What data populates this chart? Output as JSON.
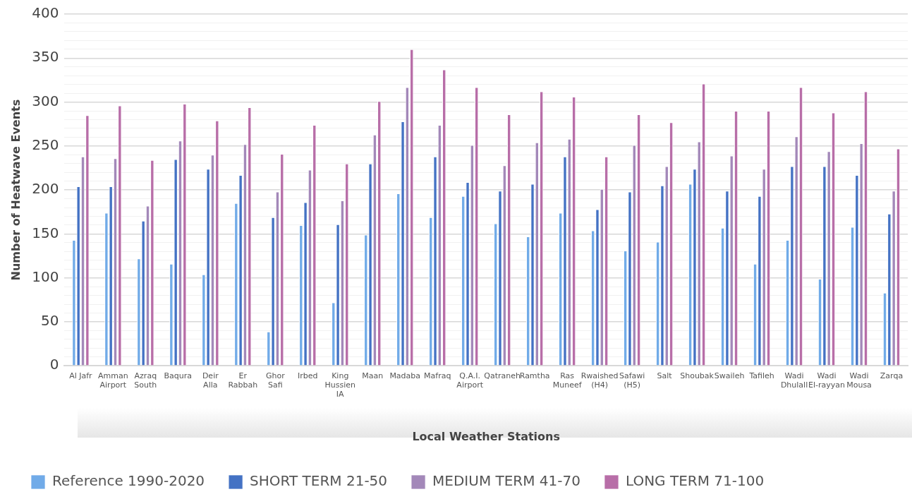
{
  "chart_data": {
    "type": "bar",
    "xlabel": "Local Weather Stations",
    "ylabel": "Number of Heatwave Events",
    "categories": [
      "Al Jafr",
      "Amman Airport",
      "Azraq South",
      "Baqura",
      "Deir Alla",
      "Er Rabbah",
      "Ghor Safi",
      "Irbed",
      "King Hussien IA",
      "Maan",
      "Madaba",
      "Mafraq",
      "Q.A.I. Airport",
      "Qatraneh",
      "Ramtha",
      "Ras Muneef",
      "Rwaished (H4)",
      "Safawi (H5)",
      "Salt",
      "Shoubak",
      "Swaileh",
      "Tafileh",
      "Wadi Dhulall",
      "Wadi El-rayyan",
      "Wadi Mousa",
      "Zarqa"
    ],
    "series": [
      {
        "name": "Reference 1990-2020",
        "color": "#71abe8",
        "values": [
          143,
          174,
          122,
          116,
          104,
          185,
          39,
          160,
          72,
          149,
          196,
          169,
          193,
          162,
          147,
          174,
          154,
          131,
          141,
          207,
          157,
          116,
          143,
          99,
          158,
          83
        ]
      },
      {
        "name": "SHORT TERM 21-50",
        "color": "#4472c4",
        "values": [
          204,
          204,
          165,
          235,
          224,
          217,
          169,
          186,
          161,
          230,
          278,
          238,
          209,
          199,
          207,
          238,
          178,
          198,
          205,
          224,
          199,
          193,
          227,
          227,
          217,
          173
        ]
      },
      {
        "name": "MEDIUM TERM 41-70",
        "color": "#a388b9",
        "values": [
          238,
          236,
          182,
          256,
          240,
          252,
          198,
          223,
          188,
          263,
          317,
          274,
          251,
          228,
          254,
          258,
          201,
          251,
          227,
          255,
          239,
          224,
          261,
          244,
          253,
          199
        ]
      },
      {
        "name": "LONG TERM 71-100",
        "color": "#b86ea8",
        "values": [
          285,
          296,
          234,
          298,
          279,
          294,
          241,
          274,
          230,
          301,
          360,
          337,
          317,
          286,
          312,
          306,
          238,
          286,
          277,
          321,
          290,
          290,
          317,
          288,
          312,
          247
        ]
      }
    ],
    "ylim": [
      0,
      400
    ],
    "yticks": [
      0,
      {
        "value": 10,
        "label": null
      },
      {
        "value": 20,
        "label": null
      },
      {
        "value": 30,
        "label": null
      },
      {
        "value": 40,
        "label": null
      },
      50,
      {
        "value": 60,
        "label": null
      },
      {
        "value": 70,
        "label": null
      },
      {
        "value": 80,
        "label": null
      },
      {
        "value": 90,
        "label": null
      },
      100,
      {
        "value": 110,
        "label": null
      },
      {
        "value": 120,
        "label": null
      },
      {
        "value": 130,
        "label": null
      },
      {
        "value": 140,
        "label": null
      },
      150,
      {
        "value": 160,
        "label": null
      },
      {
        "value": 170,
        "label": null
      },
      {
        "value": 180,
        "label": null
      },
      {
        "value": 190,
        "label": null
      },
      200,
      {
        "value": 210,
        "label": null
      },
      {
        "value": 220,
        "label": null
      },
      {
        "value": 230,
        "label": null
      },
      {
        "value": 240,
        "label": null
      },
      250,
      {
        "value": 260,
        "label": null
      },
      {
        "value": 270,
        "label": null
      },
      {
        "value": 280,
        "label": null
      },
      {
        "value": 290,
        "label": null
      },
      300,
      {
        "value": 310,
        "label": null
      },
      {
        "value": 320,
        "label": null
      },
      {
        "value": 330,
        "label": null
      },
      {
        "value": 340,
        "label": null
      },
      350,
      {
        "value": 360,
        "label": null
      },
      {
        "value": 370,
        "label": null
      },
      {
        "value": 380,
        "label": null
      },
      {
        "value": 390,
        "label": null
      },
      400
    ],
    "grid": "y",
    "legend": "bottom left"
  }
}
